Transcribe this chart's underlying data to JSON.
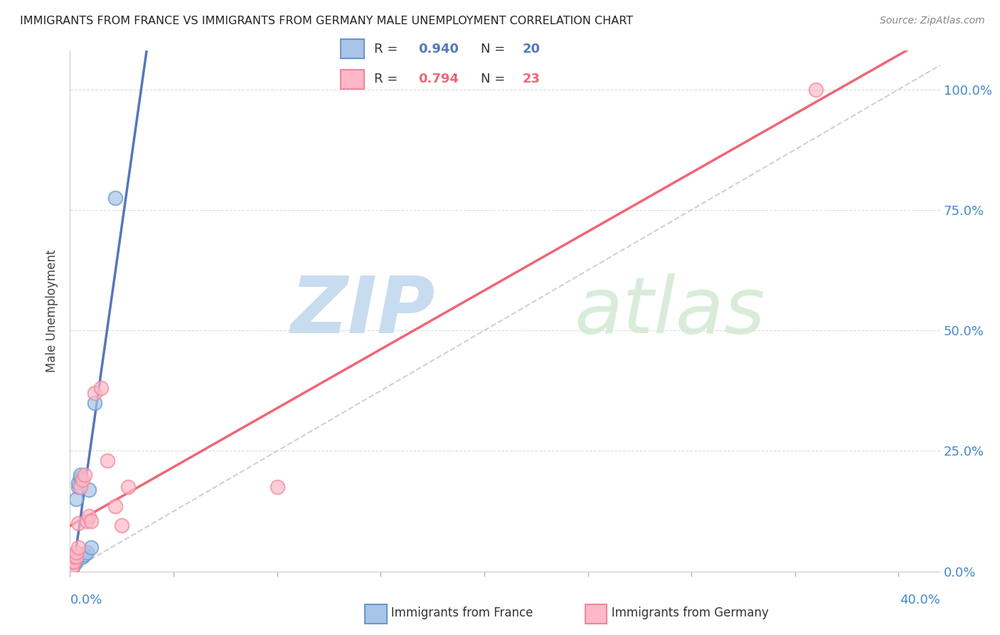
{
  "title": "IMMIGRANTS FROM FRANCE VS IMMIGRANTS FROM GERMANY MALE UNEMPLOYMENT CORRELATION CHART",
  "source": "Source: ZipAtlas.com",
  "ylabel": "Male Unemployment",
  "legend_label_france": "Immigrants from France",
  "legend_label_germany": "Immigrants from Germany",
  "legend_r_france": "0.940",
  "legend_n_france": "20",
  "legend_r_germany": "0.794",
  "legend_n_germany": "23",
  "color_france_fill": "#A8C4E8",
  "color_france_edge": "#6699CC",
  "color_france_line": "#5577BB",
  "color_germany_fill": "#FFB8C8",
  "color_germany_edge": "#EE8899",
  "color_germany_line": "#EE6677",
  "color_diagonal": "#CCCCCC",
  "color_right_axis": "#4488CC",
  "color_watermark": "#C8DCEF",
  "france_x": [
    0.001,
    0.001,
    0.001,
    0.002,
    0.002,
    0.002,
    0.003,
    0.003,
    0.003,
    0.004,
    0.004,
    0.005,
    0.005,
    0.006,
    0.007,
    0.008,
    0.009,
    0.01,
    0.012,
    0.022
  ],
  "france_y": [
    0.005,
    0.01,
    0.015,
    0.015,
    0.02,
    0.025,
    0.02,
    0.025,
    0.15,
    0.175,
    0.185,
    0.195,
    0.2,
    0.03,
    0.035,
    0.04,
    0.17,
    0.05,
    0.35,
    0.775
  ],
  "germany_x": [
    0.001,
    0.001,
    0.001,
    0.002,
    0.002,
    0.003,
    0.003,
    0.004,
    0.004,
    0.005,
    0.006,
    0.007,
    0.008,
    0.009,
    0.01,
    0.012,
    0.015,
    0.018,
    0.022,
    0.025,
    0.028,
    0.1,
    0.36
  ],
  "germany_y": [
    0.005,
    0.01,
    0.02,
    0.02,
    0.03,
    0.03,
    0.04,
    0.05,
    0.1,
    0.175,
    0.19,
    0.2,
    0.105,
    0.115,
    0.105,
    0.37,
    0.38,
    0.23,
    0.135,
    0.095,
    0.175,
    0.175,
    1.0
  ],
  "xlim": [
    0.0,
    0.42
  ],
  "ylim": [
    0.0,
    1.08
  ],
  "xticks": [
    0.0,
    0.05,
    0.1,
    0.15,
    0.2,
    0.25,
    0.3,
    0.35,
    0.4
  ],
  "yticks": [
    0.0,
    0.25,
    0.5,
    0.75,
    1.0
  ],
  "ytick_labels": [
    "0.0%",
    "25.0%",
    "50.0%",
    "75.0%",
    "100.0%"
  ],
  "background_color": "#FFFFFF"
}
